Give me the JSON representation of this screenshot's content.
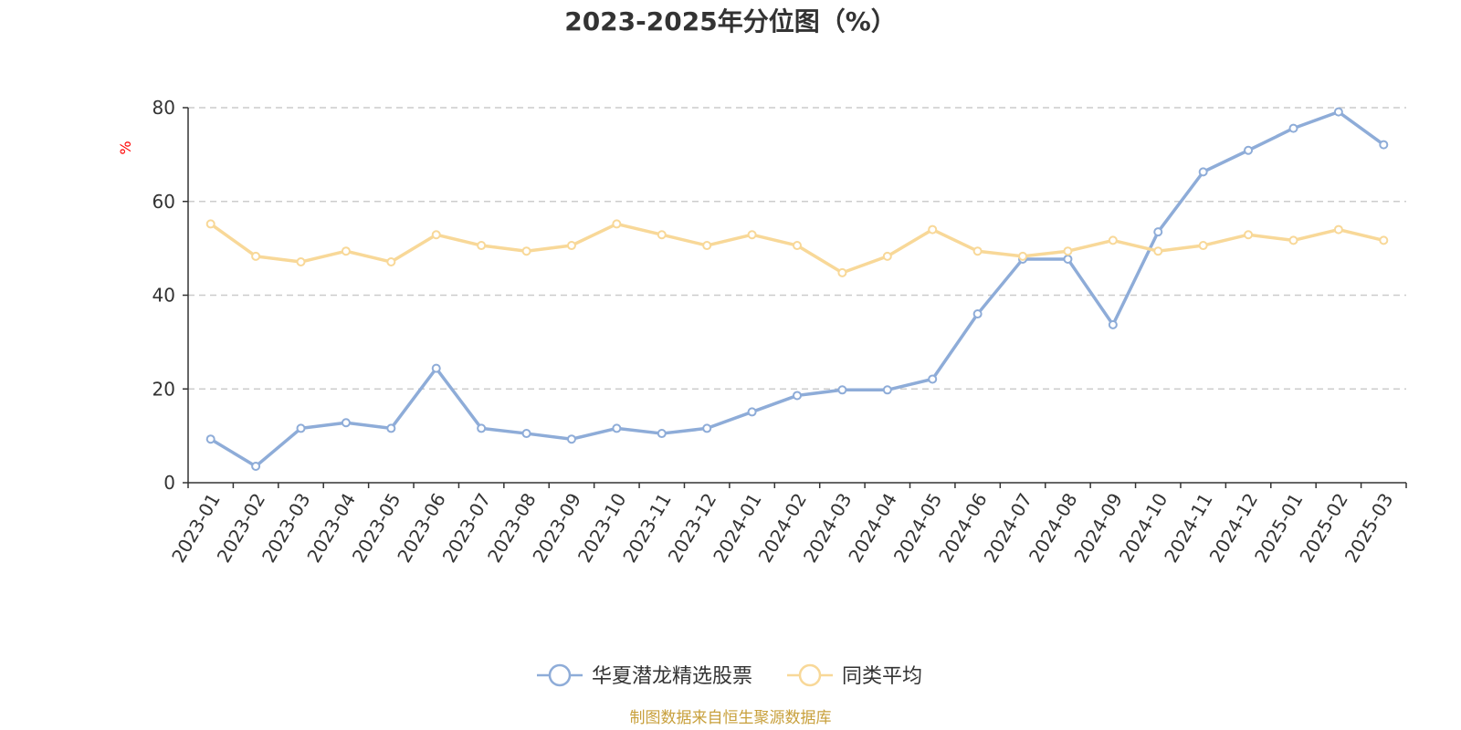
{
  "chart_data": {
    "type": "line",
    "title": "2023-2025年分位图（%）",
    "ylabel": "%",
    "xlabel": "",
    "ylim": [
      0,
      80
    ],
    "yticks": [
      0,
      20,
      40,
      60,
      80
    ],
    "grid": true,
    "legend_position": "bottom",
    "categories": [
      "2023-01",
      "2023-02",
      "2023-03",
      "2023-04",
      "2023-05",
      "2023-06",
      "2023-07",
      "2023-08",
      "2023-09",
      "2023-10",
      "2023-11",
      "2023-12",
      "2024-01",
      "2024-02",
      "2024-03",
      "2024-04",
      "2024-05",
      "2024-06",
      "2024-07",
      "2024-08",
      "2024-09",
      "2024-10",
      "2024-11",
      "2024-12",
      "2025-01",
      "2025-02",
      "2025-03"
    ],
    "series": [
      {
        "name": "华夏潜龙精选股票",
        "color": "#8eacd8",
        "values": [
          9.3,
          3.5,
          11.6,
          12.8,
          11.6,
          24.4,
          11.6,
          10.5,
          9.3,
          11.6,
          10.5,
          11.6,
          15.1,
          18.6,
          19.8,
          19.8,
          22.1,
          36.0,
          47.7,
          47.7,
          33.7,
          53.5,
          66.3,
          70.9,
          75.6,
          79.1,
          72.1
        ]
      },
      {
        "name": "同类平均",
        "color": "#f8d898",
        "values": [
          55.2,
          48.3,
          47.1,
          49.4,
          47.1,
          52.9,
          50.6,
          49.4,
          50.6,
          55.2,
          52.9,
          50.6,
          52.9,
          50.6,
          44.8,
          48.3,
          54.0,
          49.4,
          48.3,
          49.4,
          51.7,
          49.4,
          50.6,
          52.9,
          51.7,
          54.0,
          51.7
        ]
      }
    ]
  },
  "footer": {
    "source": "制图数据来自恒生聚源数据库"
  }
}
